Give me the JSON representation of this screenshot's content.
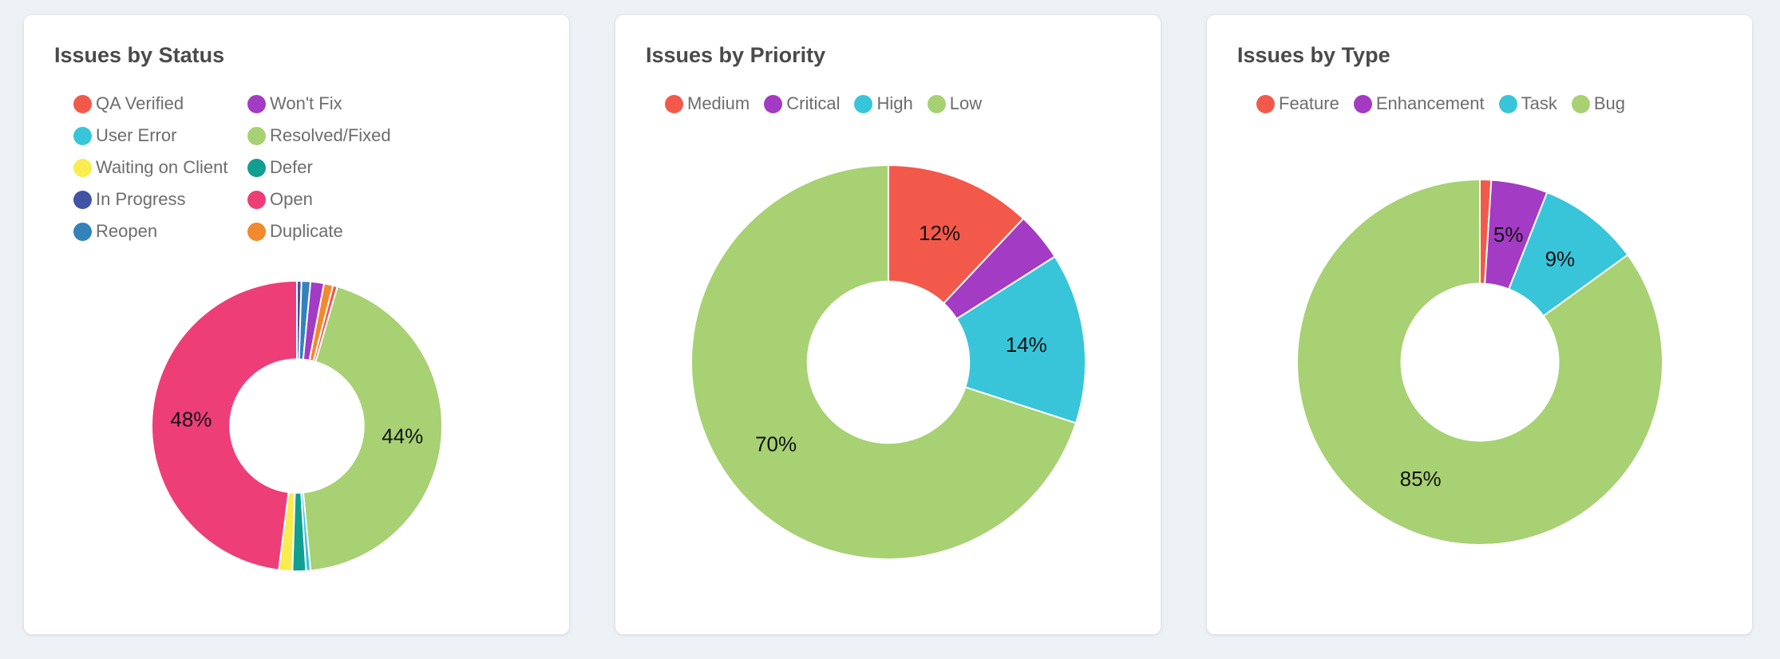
{
  "page": {
    "background_color": "#edf1f5",
    "card_background": "#ffffff"
  },
  "cards": [
    {
      "title": "Issues by Status",
      "legend": [
        {
          "label": "QA Verified",
          "color": "#f2594a"
        },
        {
          "label": "Won't Fix",
          "color": "#a43bc4"
        },
        {
          "label": "User Error",
          "color": "#38c5d9"
        },
        {
          "label": "Resolved/Fixed",
          "color": "#a7d173"
        },
        {
          "label": "Waiting on Client",
          "color": "#f8ec4f"
        },
        {
          "label": "Defer",
          "color": "#129e90"
        },
        {
          "label": "In Progress",
          "color": "#4053a4"
        },
        {
          "label": "Open",
          "color": "#ed3e78"
        },
        {
          "label": "Reopen",
          "color": "#3382ba"
        },
        {
          "label": "Duplicate",
          "color": "#f08a2c"
        }
      ],
      "chart_data": {
        "type": "pie",
        "subtype": "donut",
        "title": "Issues by Status",
        "label_format": "percent",
        "visible_labels": [
          "48%",
          "44%"
        ],
        "segments": [
          {
            "label": "In Progress",
            "value": 0.5,
            "color": "#4053a4"
          },
          {
            "label": "Reopen",
            "value": 1,
            "color": "#3382ba"
          },
          {
            "label": "Won't Fix",
            "value": 1.5,
            "color": "#a43bc4"
          },
          {
            "label": "Duplicate",
            "value": 1,
            "color": "#f08a2c"
          },
          {
            "label": "QA Verified",
            "value": 0.5,
            "color": "#f2594a"
          },
          {
            "label": "Resolved/Fixed",
            "value": 44,
            "color": "#a7d173"
          },
          {
            "label": "User Error",
            "value": 0.5,
            "color": "#38c5d9"
          },
          {
            "label": "Defer",
            "value": 1.5,
            "color": "#129e90"
          },
          {
            "label": "Waiting on Client",
            "value": 1.5,
            "color": "#f8ec4f"
          },
          {
            "label": "Open",
            "value": 48,
            "color": "#ed3e78"
          }
        ]
      }
    },
    {
      "title": "Issues by Priority",
      "legend": [
        {
          "label": "Medium",
          "color": "#f2594a"
        },
        {
          "label": "Critical",
          "color": "#a43bc4"
        },
        {
          "label": "High",
          "color": "#38c5d9"
        },
        {
          "label": "Low",
          "color": "#a7d173"
        }
      ],
      "chart_data": {
        "type": "pie",
        "subtype": "donut",
        "title": "Issues by Priority",
        "label_format": "percent",
        "visible_labels": [
          "12%",
          "14%",
          "70%"
        ],
        "segments": [
          {
            "label": "Medium",
            "value": 12,
            "color": "#f2594a"
          },
          {
            "label": "Critical",
            "value": 4,
            "color": "#a43bc4"
          },
          {
            "label": "High",
            "value": 14,
            "color": "#38c5d9"
          },
          {
            "label": "Low",
            "value": 70,
            "color": "#a7d173"
          }
        ]
      }
    },
    {
      "title": "Issues by Type",
      "legend": [
        {
          "label": "Feature",
          "color": "#f2594a"
        },
        {
          "label": "Enhancement",
          "color": "#a43bc4"
        },
        {
          "label": "Task",
          "color": "#38c5d9"
        },
        {
          "label": "Bug",
          "color": "#a7d173"
        }
      ],
      "chart_data": {
        "type": "pie",
        "subtype": "donut",
        "title": "Issues by Type",
        "label_format": "percent",
        "visible_labels": [
          "5%",
          "9%",
          "85%"
        ],
        "segments": [
          {
            "label": "Feature",
            "value": 1,
            "color": "#f2594a"
          },
          {
            "label": "Enhancement",
            "value": 5,
            "color": "#a43bc4"
          },
          {
            "label": "Task",
            "value": 9,
            "color": "#38c5d9"
          },
          {
            "label": "Bug",
            "value": 85,
            "color": "#a7d173"
          }
        ]
      }
    }
  ]
}
